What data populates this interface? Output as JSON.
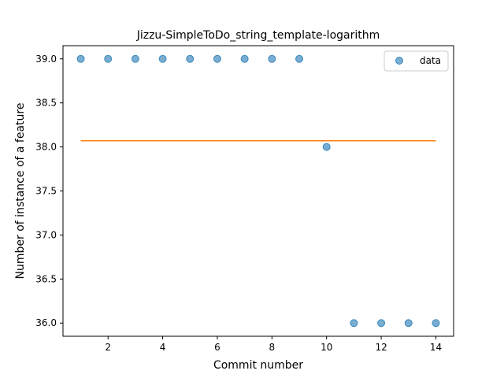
{
  "chart_data": {
    "type": "scatter",
    "title": "Jizzu-SimpleToDo_string_template-logarithm",
    "xlabel": "Commit number",
    "ylabel": "Number of instance of a feature",
    "xlim": [
      0.35,
      14.65
    ],
    "ylim": [
      35.85,
      39.15
    ],
    "xticks": [
      2,
      4,
      6,
      8,
      10,
      12,
      14
    ],
    "yticks": [
      36.0,
      36.5,
      37.0,
      37.5,
      38.0,
      38.5,
      39.0
    ],
    "xtick_labels": [
      "2",
      "4",
      "6",
      "8",
      "10",
      "12",
      "14"
    ],
    "ytick_labels": [
      "36.0",
      "36.5",
      "37.0",
      "37.5",
      "38.0",
      "38.5",
      "39.0"
    ],
    "series": [
      {
        "name": "data",
        "kind": "scatter",
        "color": "#1f77b4",
        "x": [
          1,
          2,
          3,
          4,
          5,
          6,
          7,
          8,
          9,
          10,
          11,
          12,
          13,
          14
        ],
        "y": [
          39,
          39,
          39,
          39,
          39,
          39,
          39,
          39,
          39,
          38,
          36,
          36,
          36,
          36
        ]
      },
      {
        "kind": "line",
        "color": "#ff7f0e",
        "x": [
          1,
          14
        ],
        "y": [
          38.07,
          38.07
        ]
      }
    ],
    "legend": {
      "position": "top-right",
      "entries": [
        "data"
      ]
    },
    "grid": false
  }
}
